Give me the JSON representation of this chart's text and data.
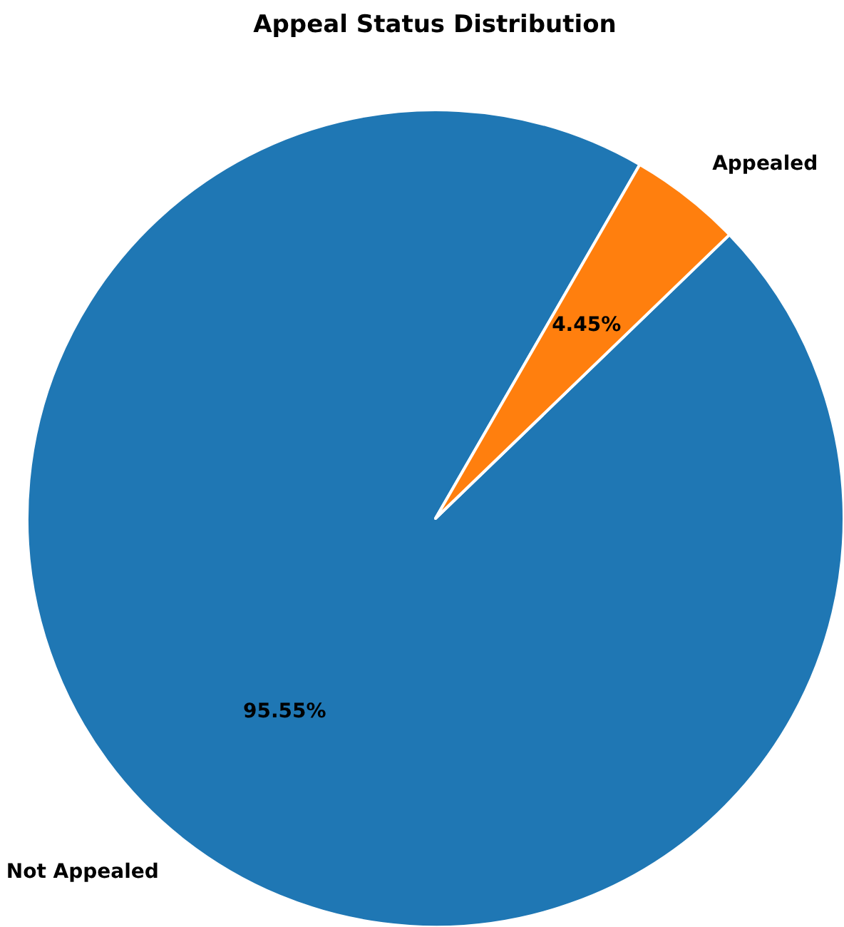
{
  "chart_data": {
    "type": "pie",
    "title": "Appeal Status Distribution",
    "categories": [
      "Not Appealed",
      "Appealed"
    ],
    "values": [
      95.55,
      4.45
    ],
    "colors": [
      "#1f77b4",
      "#ff7f0e"
    ],
    "value_labels": [
      "95.55%",
      "4.45%"
    ]
  }
}
